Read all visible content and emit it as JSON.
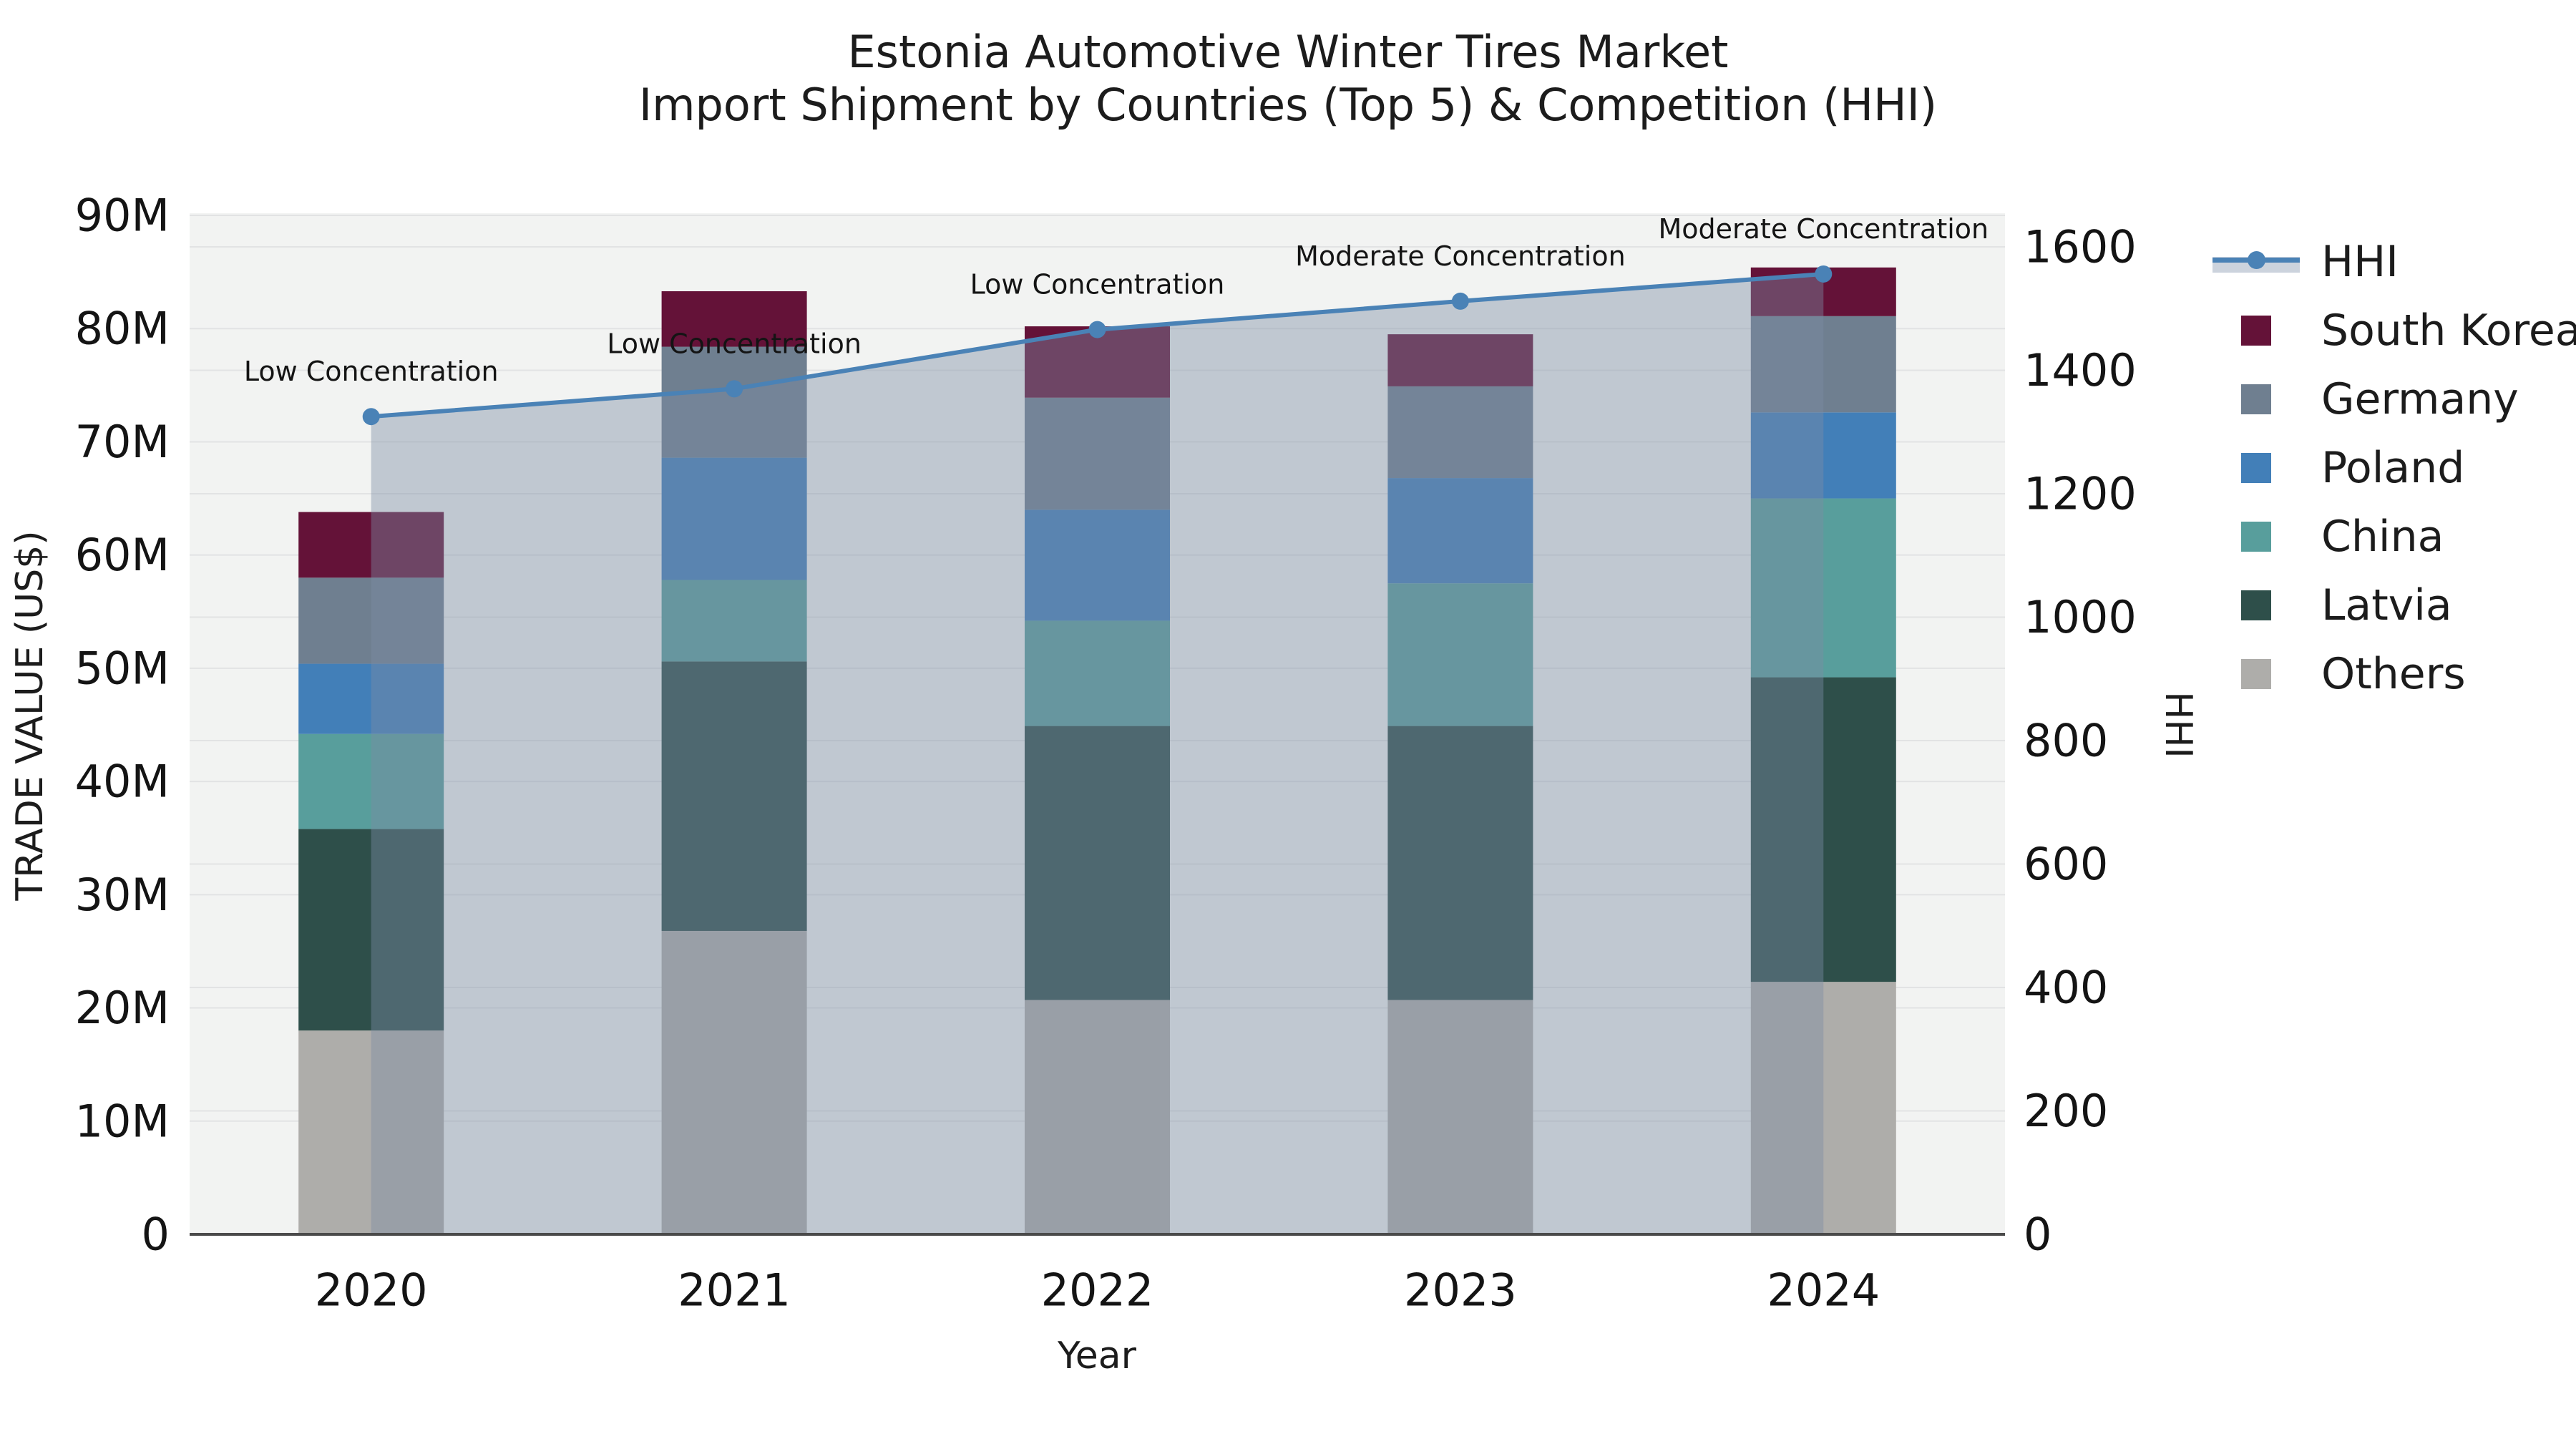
{
  "title": {
    "line1": "Estonia Automotive Winter Tires Market",
    "line2": "Import Shipment by Countries (Top 5) & Competition (HHI)"
  },
  "axes": {
    "x_title": "Year",
    "y_left_title": "TRADE VALUE (US$)",
    "y_right_title": "HHI",
    "y_left_tick_labels": [
      "0",
      "10M",
      "20M",
      "30M",
      "40M",
      "50M",
      "60M",
      "70M",
      "80M",
      "90M"
    ],
    "y_right_tick_labels": [
      "0",
      "200",
      "400",
      "600",
      "800",
      "1000",
      "1200",
      "1400",
      "1600"
    ]
  },
  "legend": {
    "items": [
      {
        "label": "HHI",
        "kind": "line",
        "color": "#4a82b6"
      },
      {
        "label": "South Korea",
        "kind": "box",
        "color": "#641238"
      },
      {
        "label": "Germany",
        "kind": "box",
        "color": "#6f7f90"
      },
      {
        "label": "Poland",
        "kind": "box",
        "color": "#427fb8"
      },
      {
        "label": "China",
        "kind": "box",
        "color": "#589e9c"
      },
      {
        "label": "Latvia",
        "kind": "box",
        "color": "#2e4f4a"
      },
      {
        "label": "Others",
        "kind": "box",
        "color": "#aeadaa"
      }
    ]
  },
  "chart_data": {
    "type": "bar+line",
    "title": "Estonia Automotive Winter Tires Market — Import Shipment by Countries (Top 5) & Competition (HHI)",
    "categories": [
      "2020",
      "2021",
      "2022",
      "2023",
      "2024"
    ],
    "bar_value_unit": "M US$ (trade value)",
    "stack_order_bottom_to_top": [
      "Others",
      "Latvia",
      "China",
      "Poland",
      "Germany",
      "South Korea"
    ],
    "series": [
      {
        "name": "Others",
        "color": "#aeadaa",
        "values": [
          18.0,
          26.8,
          20.7,
          20.7,
          22.3
        ]
      },
      {
        "name": "Latvia",
        "color": "#2e4f4a",
        "values": [
          17.8,
          23.8,
          24.2,
          24.2,
          26.9
        ]
      },
      {
        "name": "China",
        "color": "#589e9c",
        "values": [
          8.4,
          7.2,
          9.3,
          12.6,
          15.8
        ]
      },
      {
        "name": "Poland",
        "color": "#427fb8",
        "values": [
          6.2,
          10.8,
          9.8,
          9.3,
          7.6
        ]
      },
      {
        "name": "Germany",
        "color": "#6f7f90",
        "values": [
          7.6,
          9.8,
          9.9,
          8.1,
          8.5
        ]
      },
      {
        "name": "South Korea",
        "color": "#641238",
        "values": [
          5.8,
          4.9,
          6.3,
          4.6,
          4.3
        ]
      }
    ],
    "stack_totals": [
      63.8,
      83.3,
      80.2,
      79.5,
      85.4
    ],
    "line_series": {
      "name": "HHI",
      "color": "#4a82b6",
      "area_fill": "rgba(125,140,165,0.42)",
      "values": [
        1325,
        1370,
        1466,
        1512,
        1556
      ]
    },
    "annotations": [
      "Low Concentration",
      "Low Concentration",
      "Low Concentration",
      "Moderate Concentration",
      "Moderate Concentration"
    ],
    "y_left": {
      "label": "TRADE VALUE (US$)",
      "min": 0,
      "max": 90,
      "tick_step": 10,
      "unit": "M"
    },
    "y_right": {
      "label": "HHI",
      "min": 0,
      "ticks": [
        0,
        200,
        400,
        600,
        800,
        1000,
        1200,
        1400,
        1600
      ]
    },
    "legend_position": "right",
    "grid": true,
    "xlabel": "Year",
    "ylabel": "TRADE VALUE (US$)"
  }
}
